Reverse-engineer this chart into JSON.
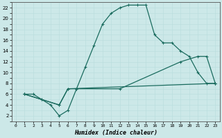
{
  "xlabel": "Humidex (Indice chaleur)",
  "bg_color": "#cce8e8",
  "line_color": "#1a6b5e",
  "grid_color": "#b0d8d8",
  "xlim": [
    -0.5,
    23.5
  ],
  "ylim": [
    1.0,
    23.0
  ],
  "xticks": [
    0,
    1,
    2,
    3,
    4,
    5,
    6,
    7,
    8,
    9,
    10,
    11,
    12,
    13,
    14,
    15,
    16,
    17,
    18,
    19,
    20,
    21,
    22,
    23
  ],
  "yticks": [
    2,
    4,
    6,
    8,
    10,
    12,
    14,
    16,
    18,
    20,
    22
  ],
  "line1_x": [
    1,
    2,
    3,
    4,
    5,
    6,
    7,
    8,
    9,
    10,
    11,
    12,
    13,
    14,
    15,
    16,
    17,
    18,
    19,
    20,
    21,
    22,
    23
  ],
  "line1_y": [
    6,
    6,
    5,
    4,
    2,
    3,
    7,
    11,
    15,
    19,
    21,
    22,
    22.5,
    22.5,
    22.5,
    17,
    15.5,
    15.5,
    14,
    13,
    10,
    8,
    8
  ],
  "line2_x": [
    1,
    3,
    5,
    6,
    7,
    12,
    19,
    21,
    22,
    23
  ],
  "line2_y": [
    6,
    5,
    4,
    7,
    7,
    7,
    12,
    13,
    13,
    8
  ],
  "line3_x": [
    1,
    5,
    6,
    23
  ],
  "line3_y": [
    6,
    4,
    7,
    8
  ]
}
